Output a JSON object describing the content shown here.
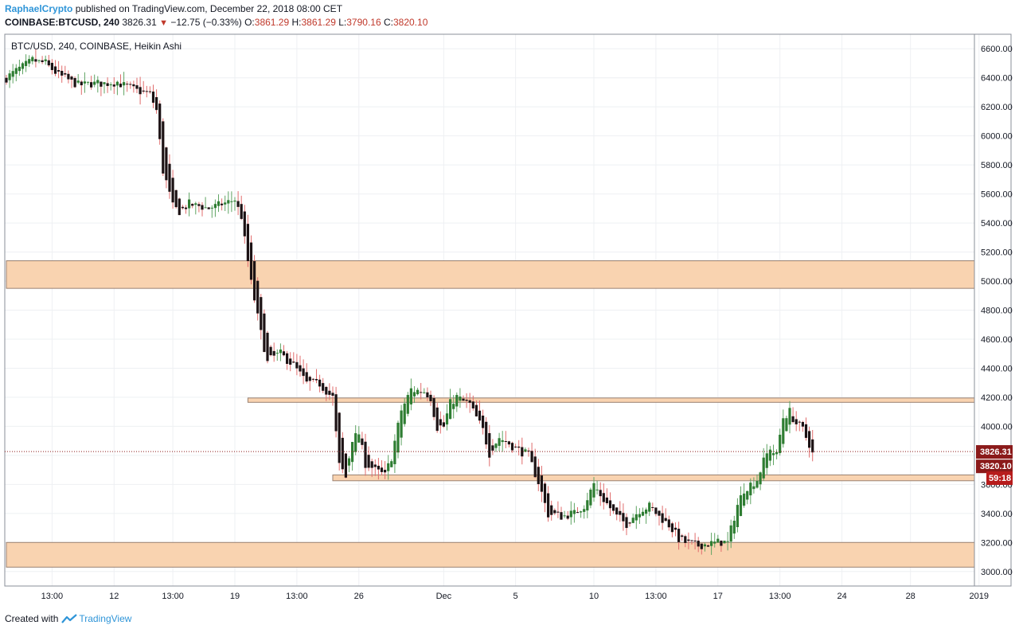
{
  "header": {
    "author": "RaphaelCrypto",
    "published_text": "published on TradingView.com, December 22, 2018 08:00 CET",
    "symbol": "COINBASE:BTCUSD, 240",
    "last": "3826.31",
    "change": "−12.75 (−0.33%)",
    "o_label": "O:",
    "o_value": "3861.29",
    "h_label": "H:",
    "h_value": "3861.29",
    "l_label": "L:",
    "l_value": "3790.16",
    "c_label": "C:",
    "c_value": "3820.10"
  },
  "footer": {
    "created_with": "Created with",
    "brand": "TradingView"
  },
  "colors": {
    "up": "#2e7d32",
    "down": "#1c1214",
    "wick_up": "#5fa463",
    "wick_down": "#e06c6c",
    "zone_fill": "#f9d3b0",
    "zone_stroke": "#9a8172",
    "price_badge": "#8b1a1a",
    "timer_badge": "#b71c1c"
  },
  "chart_data": {
    "type": "candlestick",
    "title": "BTC/USD, 240, COINBASE, Heikin Ashi",
    "ylim": [
      2900,
      6700
    ],
    "y_ticks": [
      3000,
      3200,
      3400,
      3600,
      3800,
      4000,
      4200,
      4400,
      4600,
      4800,
      5000,
      5200,
      5400,
      5600,
      5800,
      6000,
      6200,
      6400,
      6600
    ],
    "y_tick_labels": [
      "3000.00",
      "3200.00",
      "3400.00",
      "3600.00",
      "3800.00",
      "4000.00",
      "4200.00",
      "4400.00",
      "4600.00",
      "4800.00",
      "5000.00",
      "5200.00",
      "5400.00",
      "5600.00",
      "5800.00",
      "6000.00",
      "6200.00",
      "6400.00",
      "6600.00"
    ],
    "x_tick_labels": [
      "13:00",
      "12",
      "13:00",
      "19",
      "13:00",
      "26",
      "Dec",
      "5",
      "10",
      "13:00",
      "17",
      "13:00",
      "24",
      "28",
      "2019"
    ],
    "x_ticks_bar_index": [
      14,
      33,
      51,
      70,
      89,
      108,
      134,
      156,
      180,
      199,
      218,
      237,
      256,
      277,
      298
    ],
    "bar_count": 300,
    "zones": [
      {
        "low": 4950,
        "high": 5140,
        "from_bar": 0
      },
      {
        "low": 4165,
        "high": 4195,
        "from_bar": 74
      },
      {
        "low": 3625,
        "high": 3665,
        "from_bar": 100
      },
      {
        "low": 3030,
        "high": 3200,
        "from_bar": 0
      }
    ],
    "current_price": 3826.31,
    "close_price": 3820.1,
    "price_label": "3826.31",
    "close_label": "3820.10",
    "timer_label": "59:18",
    "axis_partial_label": "3600.00",
    "path_anchors": [
      [
        0,
        6400
      ],
      [
        8,
        6520
      ],
      [
        12,
        6500
      ],
      [
        16,
        6420
      ],
      [
        22,
        6350
      ],
      [
        28,
        6360
      ],
      [
        34,
        6370
      ],
      [
        40,
        6310
      ],
      [
        44,
        6290
      ],
      [
        46,
        6180
      ],
      [
        48,
        5780
      ],
      [
        51,
        5520
      ],
      [
        53,
        5480
      ],
      [
        56,
        5530
      ],
      [
        62,
        5500
      ],
      [
        70,
        5560
      ],
      [
        72,
        5450
      ],
      [
        75,
        5000
      ],
      [
        78,
        4650
      ],
      [
        80,
        4450
      ],
      [
        84,
        4500
      ],
      [
        88,
        4420
      ],
      [
        92,
        4300
      ],
      [
        96,
        4290
      ],
      [
        100,
        4200
      ],
      [
        102,
        3750
      ],
      [
        104,
        3650
      ],
      [
        106,
        3900
      ],
      [
        108,
        3950
      ],
      [
        110,
        3750
      ],
      [
        113,
        3700
      ],
      [
        116,
        3660
      ],
      [
        118,
        3780
      ],
      [
        121,
        4100
      ],
      [
        124,
        4250
      ],
      [
        128,
        4240
      ],
      [
        130,
        4200
      ],
      [
        132,
        4000
      ],
      [
        134,
        4000
      ],
      [
        136,
        4150
      ],
      [
        138,
        4200
      ],
      [
        142,
        4150
      ],
      [
        146,
        3980
      ],
      [
        148,
        3820
      ],
      [
        151,
        3920
      ],
      [
        153,
        3900
      ],
      [
        156,
        3850
      ],
      [
        160,
        3800
      ],
      [
        163,
        3620
      ],
      [
        166,
        3400
      ],
      [
        170,
        3380
      ],
      [
        174,
        3400
      ],
      [
        177,
        3450
      ],
      [
        180,
        3600
      ],
      [
        183,
        3500
      ],
      [
        187,
        3380
      ],
      [
        190,
        3330
      ],
      [
        194,
        3420
      ],
      [
        197,
        3450
      ],
      [
        200,
        3380
      ],
      [
        203,
        3320
      ],
      [
        206,
        3230
      ],
      [
        208,
        3200
      ],
      [
        212,
        3180
      ],
      [
        218,
        3200
      ],
      [
        221,
        3200
      ],
      [
        224,
        3450
      ],
      [
        226,
        3560
      ],
      [
        228,
        3600
      ],
      [
        230,
        3630
      ],
      [
        232,
        3750
      ],
      [
        234,
        3850
      ],
      [
        236,
        3800
      ],
      [
        238,
        4050
      ],
      [
        240,
        4100
      ],
      [
        242,
        4020
      ],
      [
        244,
        3980
      ],
      [
        246,
        3880
      ],
      [
        247,
        3830
      ]
    ],
    "noise": 55,
    "series": [
      {
        "name": "BTC/USD"
      }
    ]
  }
}
